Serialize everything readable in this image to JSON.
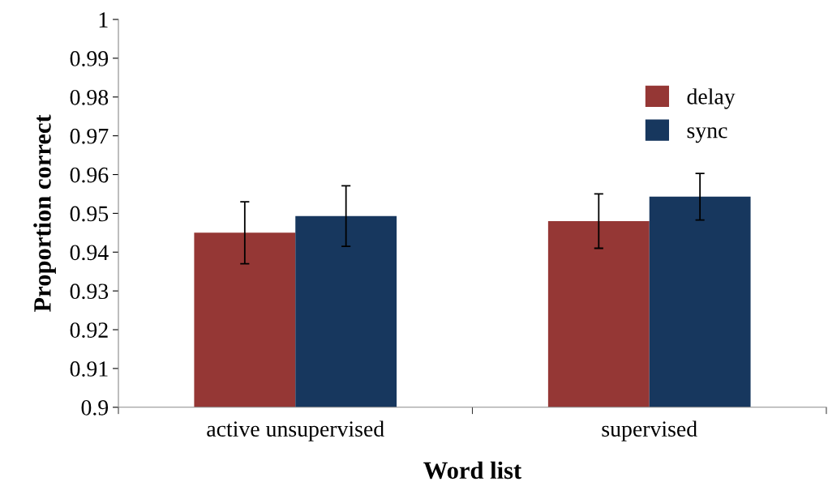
{
  "chart_data": {
    "type": "bar",
    "xlabel": "Word list",
    "ylabel": "Proportion correct",
    "categories": [
      "active unsupervised",
      "supervised"
    ],
    "series": [
      {
        "name": "delay",
        "color": "#953735",
        "values": [
          0.945,
          0.948
        ],
        "errors": [
          0.008,
          0.007
        ]
      },
      {
        "name": "sync",
        "color": "#17375e",
        "values": [
          0.9493,
          0.9543
        ],
        "errors": [
          0.0078,
          0.006
        ]
      }
    ],
    "ylim": [
      0.9,
      1
    ],
    "yticks": [
      0.9,
      0.91,
      0.92,
      0.93,
      0.94,
      0.95,
      0.96,
      0.97,
      0.98,
      0.99,
      1
    ],
    "grid": false,
    "legend": "top right"
  }
}
